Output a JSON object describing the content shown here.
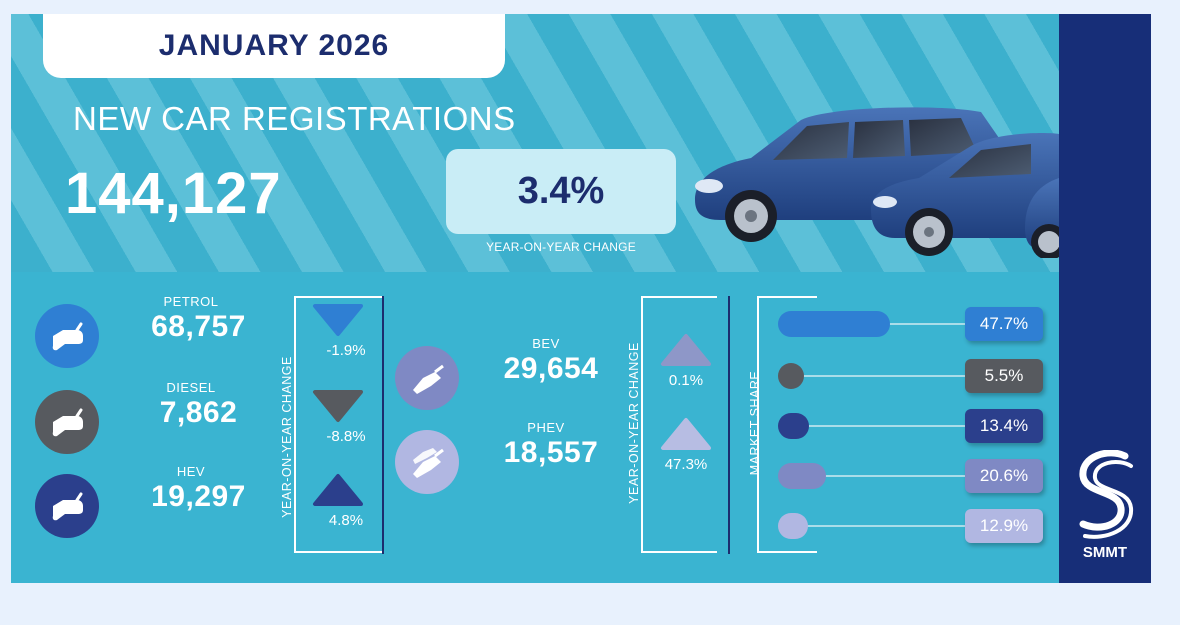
{
  "header": {
    "date": "JANUARY 2026",
    "title": "NEW CAR REGISTRATIONS",
    "total": "144,127",
    "yoy_change": "3.4%",
    "yoy_caption": "YEAR-ON-YEAR CHANGE"
  },
  "fuel_types_left": [
    {
      "label": "PETROL",
      "value": "68,757",
      "change": "-1.9%",
      "direction": "down",
      "color": "#2f7fd3",
      "arrow_color": "#2f7fd3"
    },
    {
      "label": "DIESEL",
      "value": "7,862",
      "change": "-8.8%",
      "direction": "down",
      "color": "#575a5f",
      "arrow_color": "#575a5f"
    },
    {
      "label": "HEV",
      "value": "19,297",
      "change": "4.8%",
      "direction": "up",
      "color": "#2b3f8c",
      "arrow_color": "#2b3f8c"
    }
  ],
  "fuel_types_right": [
    {
      "label": "BEV",
      "value": "29,654",
      "change": "0.1%",
      "direction": "up",
      "color": "#7f89c4",
      "arrow_color": "#8e97c8"
    },
    {
      "label": "PHEV",
      "value": "18,557",
      "change": "47.3%",
      "direction": "up",
      "color": "#b1b7e2",
      "arrow_color": "#b7bde3"
    }
  ],
  "yoy_axis_label": "YEAR-ON-YEAR CHANGE",
  "market_share": {
    "axis_label": "MARKET SHARE",
    "items": [
      {
        "value": 47.7,
        "label": "47.7%",
        "color": "#2f7fd3"
      },
      {
        "value": 5.5,
        "label": "5.5%",
        "color": "#575a5f"
      },
      {
        "value": 13.4,
        "label": "13.4%",
        "color": "#2b3f8c"
      },
      {
        "value": 20.6,
        "label": "20.6%",
        "color": "#7f89c4"
      },
      {
        "value": 12.9,
        "label": "12.9%",
        "color": "#b1b7e2"
      }
    ]
  },
  "brand": {
    "name": "SMMT"
  }
}
